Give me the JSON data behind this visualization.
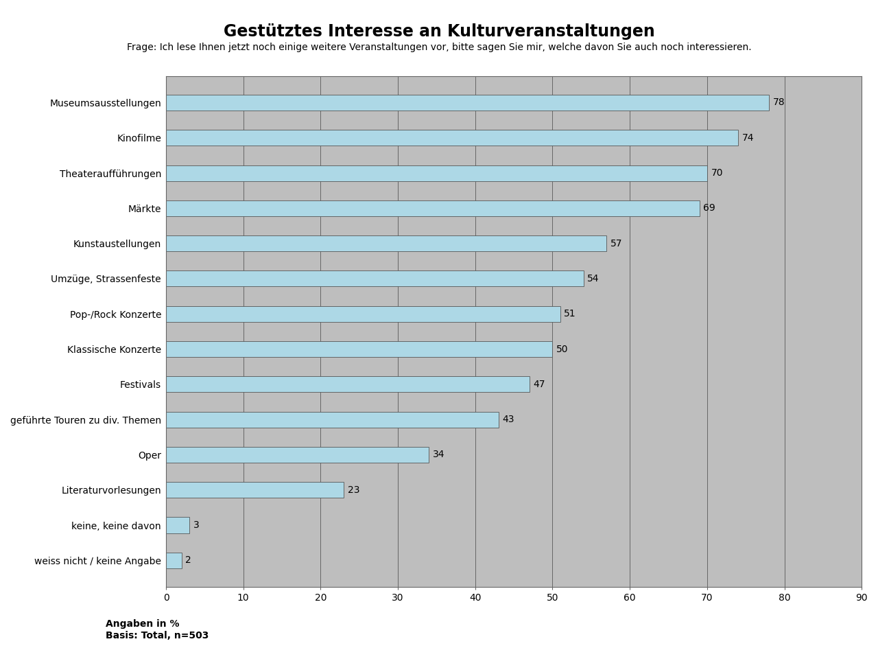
{
  "title": "Gestütztes Interesse an Kulturveranstaltungen",
  "subtitle": "Frage: Ich lese Ihnen jetzt noch einige weitere Veranstaltungen vor, bitte sagen Sie mir, welche davon Sie auch noch interessieren.",
  "categories": [
    "Museumsausstellungen",
    "Kinofilme",
    "Theateraufführungen",
    "Märkte",
    "Kunstaustellungen",
    "Umzüge, Strassenfeste",
    "Pop-/Rock Konzerte",
    "Klassische Konzerte",
    "Festivals",
    "geführte Touren zu div. Themen",
    "Oper",
    "Literaturvorlesungen",
    "keine, keine davon",
    "weiss nicht / keine Angabe"
  ],
  "values": [
    78,
    74,
    70,
    69,
    57,
    54,
    51,
    50,
    47,
    43,
    34,
    23,
    3,
    2
  ],
  "bar_color": "#ADD8E6",
  "bar_edge_color": "#555555",
  "plot_bg_color": "#BEBEBE",
  "fig_bg_color": "#FFFFFF",
  "xlim": [
    0,
    90
  ],
  "xticks": [
    0,
    10,
    20,
    30,
    40,
    50,
    60,
    70,
    80,
    90
  ],
  "grid_color": "#666666",
  "footnote_line1": "Angaben in %",
  "footnote_line2": "Basis: Total, n=503",
  "title_fontsize": 17,
  "subtitle_fontsize": 10,
  "label_fontsize": 10,
  "value_fontsize": 10,
  "footnote_fontsize": 10,
  "bar_height": 0.45
}
